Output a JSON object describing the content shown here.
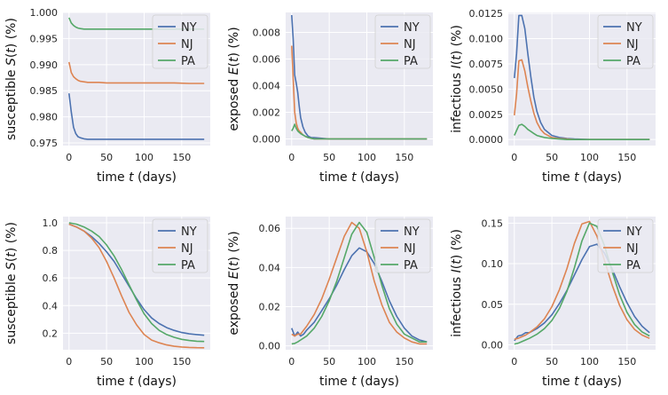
{
  "chart_data": [
    {
      "type": "line",
      "row": 0,
      "col": 0,
      "xlabel": "time t (days)",
      "ylabel": "susceptible S(t) (%)",
      "xlim": [
        -8,
        188
      ],
      "ylim": [
        0.9745,
        1.0
      ],
      "xticks": [
        0,
        50,
        100,
        150
      ],
      "yticks": [
        0.975,
        0.98,
        0.985,
        0.99,
        0.995,
        1.0
      ],
      "yticklabels": [
        "0.975",
        "0.980",
        "0.985",
        "0.990",
        "0.995",
        "1.000"
      ],
      "legend": [
        "NY",
        "NJ",
        "PA"
      ],
      "series": [
        {
          "name": "NY",
          "color": "#4c72b0",
          "x": [
            0,
            3,
            6,
            9,
            12,
            15,
            20,
            25,
            30,
            40,
            50,
            60,
            80,
            100,
            120,
            140,
            160,
            180
          ],
          "y": [
            0.9845,
            0.981,
            0.978,
            0.9768,
            0.9762,
            0.976,
            0.9758,
            0.9757,
            0.9757,
            0.9757,
            0.9757,
            0.9757,
            0.9757,
            0.9757,
            0.9757,
            0.9757,
            0.9757,
            0.9757
          ]
        },
        {
          "name": "NJ",
          "color": "#dd8452",
          "x": [
            0,
            3,
            6,
            9,
            12,
            15,
            20,
            25,
            30,
            40,
            50,
            60,
            80,
            100,
            120,
            140,
            160,
            180
          ],
          "y": [
            0.9905,
            0.9885,
            0.9877,
            0.9873,
            0.987,
            0.9868,
            0.9867,
            0.9866,
            0.9866,
            0.9866,
            0.9865,
            0.9865,
            0.9865,
            0.9865,
            0.9865,
            0.9865,
            0.9864,
            0.9864
          ]
        },
        {
          "name": "PA",
          "color": "#55a868",
          "x": [
            0,
            3,
            6,
            9,
            12,
            15,
            20,
            25,
            30,
            40,
            50,
            60,
            80,
            100,
            120,
            140,
            160,
            180
          ],
          "y": [
            0.999,
            0.998,
            0.9975,
            0.9972,
            0.997,
            0.9969,
            0.9968,
            0.9968,
            0.9968,
            0.9968,
            0.9968,
            0.9968,
            0.9968,
            0.9968,
            0.9968,
            0.9968,
            0.9968,
            0.9968
          ]
        }
      ]
    },
    {
      "type": "line",
      "row": 0,
      "col": 1,
      "xlabel": "time t (days)",
      "ylabel": "exposed E(t) (%)",
      "xlim": [
        -8,
        188
      ],
      "ylim": [
        -0.0005,
        0.0095
      ],
      "xticks": [
        0,
        50,
        100,
        150
      ],
      "yticks": [
        0,
        0.002,
        0.004,
        0.006,
        0.008
      ],
      "yticklabels": [
        "0.000",
        "0.002",
        "0.004",
        "0.006",
        "0.008"
      ],
      "legend": [
        "NY",
        "NJ",
        "PA"
      ],
      "series": [
        {
          "name": "NY",
          "color": "#4c72b0",
          "x": [
            0,
            2,
            4,
            6,
            8,
            10,
            12,
            15,
            18,
            22,
            26,
            30,
            40,
            50,
            60,
            80,
            100,
            120,
            140,
            160,
            180
          ],
          "y": [
            0.0093,
            0.0075,
            0.0048,
            0.0042,
            0.0035,
            0.0025,
            0.0016,
            0.0009,
            0.0005,
            0.0002,
            0.0001,
            0.0001,
            5e-05,
            0,
            0,
            0,
            0,
            0,
            0,
            0,
            0
          ]
        },
        {
          "name": "NJ",
          "color": "#dd8452",
          "x": [
            0,
            2,
            4,
            6,
            8,
            10,
            12,
            15,
            18,
            22,
            26,
            30,
            40,
            50,
            60,
            80,
            100,
            120,
            140,
            160,
            180
          ],
          "y": [
            0.007,
            0.0045,
            0.002,
            0.0012,
            0.0008,
            0.0006,
            0.0005,
            0.0003,
            0.0002,
            0.0001,
            5e-05,
            0,
            0,
            0,
            0,
            0,
            0,
            0,
            0,
            0,
            0
          ]
        },
        {
          "name": "PA",
          "color": "#55a868",
          "x": [
            0,
            2,
            4,
            6,
            8,
            10,
            12,
            15,
            18,
            22,
            26,
            30,
            40,
            50,
            60,
            80,
            100,
            120,
            140,
            160,
            180
          ],
          "y": [
            0.0006,
            0.0008,
            0.0011,
            0.0008,
            0.0006,
            0.0005,
            0.0004,
            0.0003,
            0.0002,
            0.0001,
            5e-05,
            0,
            0,
            0,
            0,
            0,
            0,
            0,
            0,
            0,
            0
          ]
        }
      ]
    },
    {
      "type": "line",
      "row": 0,
      "col": 2,
      "xlabel": "time t (days)",
      "ylabel": "infectious I(t) (%)",
      "xlim": [
        -8,
        188
      ],
      "ylim": [
        -0.0006,
        0.0126
      ],
      "xticks": [
        0,
        50,
        100,
        150
      ],
      "yticks": [
        0,
        0.0025,
        0.005,
        0.0075,
        0.01,
        0.0125
      ],
      "yticklabels": [
        "0.0000",
        "0.0025",
        "0.0050",
        "0.0075",
        "0.0100",
        "0.0125"
      ],
      "legend": [
        "NY",
        "NJ",
        "PA"
      ],
      "series": [
        {
          "name": "NY",
          "color": "#4c72b0",
          "x": [
            0,
            3,
            6,
            10,
            14,
            18,
            22,
            26,
            30,
            35,
            40,
            50,
            60,
            70,
            80,
            100,
            120,
            140,
            160,
            180
          ],
          "y": [
            0.0061,
            0.0085,
            0.0123,
            0.0123,
            0.011,
            0.0085,
            0.0062,
            0.0042,
            0.0028,
            0.0017,
            0.001,
            0.0004,
            0.0002,
            0.0001,
            5e-05,
            0,
            0,
            0,
            0,
            0
          ]
        },
        {
          "name": "NJ",
          "color": "#dd8452",
          "x": [
            0,
            3,
            6,
            10,
            14,
            18,
            22,
            26,
            30,
            35,
            40,
            50,
            60,
            70,
            80,
            100,
            120,
            140,
            160,
            180
          ],
          "y": [
            0.0024,
            0.0045,
            0.0078,
            0.0079,
            0.0068,
            0.0052,
            0.0038,
            0.0026,
            0.0017,
            0.001,
            0.0006,
            0.0002,
            0.0001,
            5e-05,
            0,
            0,
            0,
            0,
            0,
            0
          ]
        },
        {
          "name": "PA",
          "color": "#55a868",
          "x": [
            0,
            3,
            6,
            10,
            14,
            18,
            22,
            26,
            30,
            35,
            40,
            50,
            60,
            70,
            80,
            100,
            120,
            140,
            160,
            180
          ],
          "y": [
            0.0004,
            0.0009,
            0.0014,
            0.0015,
            0.0013,
            0.001,
            0.0008,
            0.0006,
            0.0004,
            0.0003,
            0.0002,
            0.0001,
            5e-05,
            0,
            0,
            0,
            0,
            0,
            0,
            0
          ]
        }
      ]
    },
    {
      "type": "line",
      "row": 1,
      "col": 0,
      "xlabel": "time t (days)",
      "ylabel": "susceptible S(t) (%)",
      "xlim": [
        -8,
        188
      ],
      "ylim": [
        0.08,
        1.045
      ],
      "xticks": [
        0,
        50,
        100,
        150
      ],
      "yticks": [
        0.2,
        0.4,
        0.6,
        0.8,
        1.0
      ],
      "yticklabels": [
        "0.2",
        "0.4",
        "0.6",
        "0.8",
        "1.0"
      ],
      "legend": [
        "NY",
        "NJ",
        "PA"
      ],
      "series": [
        {
          "name": "NY",
          "color": "#4c72b0",
          "x": [
            0,
            10,
            20,
            30,
            40,
            50,
            60,
            70,
            80,
            90,
            100,
            110,
            120,
            130,
            140,
            150,
            160,
            170,
            180
          ],
          "y": [
            0.99,
            0.97,
            0.94,
            0.9,
            0.85,
            0.79,
            0.72,
            0.63,
            0.54,
            0.45,
            0.37,
            0.31,
            0.27,
            0.24,
            0.22,
            0.205,
            0.195,
            0.19,
            0.185
          ]
        },
        {
          "name": "NJ",
          "color": "#dd8452",
          "x": [
            0,
            10,
            20,
            30,
            40,
            50,
            60,
            70,
            80,
            90,
            100,
            110,
            120,
            130,
            140,
            150,
            160,
            170,
            180
          ],
          "y": [
            0.99,
            0.97,
            0.94,
            0.89,
            0.82,
            0.72,
            0.6,
            0.47,
            0.35,
            0.26,
            0.19,
            0.15,
            0.13,
            0.115,
            0.105,
            0.1,
            0.097,
            0.095,
            0.094
          ]
        },
        {
          "name": "PA",
          "color": "#55a868",
          "x": [
            0,
            10,
            20,
            30,
            40,
            50,
            60,
            70,
            80,
            90,
            100,
            110,
            120,
            130,
            140,
            150,
            160,
            170,
            180
          ],
          "y": [
            1.0,
            0.99,
            0.97,
            0.94,
            0.9,
            0.84,
            0.76,
            0.66,
            0.55,
            0.44,
            0.34,
            0.27,
            0.22,
            0.19,
            0.17,
            0.155,
            0.147,
            0.142,
            0.14
          ]
        }
      ]
    },
    {
      "type": "line",
      "row": 1,
      "col": 1,
      "xlabel": "time t (days)",
      "ylabel": "exposed E(t) (%)",
      "xlim": [
        -8,
        188
      ],
      "ylim": [
        -0.002,
        0.066
      ],
      "xticks": [
        0,
        50,
        100,
        150
      ],
      "yticks": [
        0,
        0.02,
        0.04,
        0.06
      ],
      "yticklabels": [
        "0.00",
        "0.02",
        "0.04",
        "0.06"
      ],
      "legend": [
        "NY",
        "NJ",
        "PA"
      ],
      "series": [
        {
          "name": "NY",
          "color": "#4c72b0",
          "x": [
            0,
            4,
            8,
            12,
            16,
            20,
            30,
            40,
            50,
            60,
            70,
            80,
            90,
            100,
            110,
            120,
            130,
            140,
            150,
            160,
            170,
            180
          ],
          "y": [
            0.009,
            0.005,
            0.007,
            0.005,
            0.006,
            0.008,
            0.012,
            0.018,
            0.024,
            0.031,
            0.039,
            0.046,
            0.05,
            0.048,
            0.042,
            0.033,
            0.023,
            0.015,
            0.009,
            0.005,
            0.003,
            0.002
          ]
        },
        {
          "name": "NJ",
          "color": "#dd8452",
          "x": [
            0,
            4,
            8,
            12,
            16,
            20,
            30,
            40,
            50,
            60,
            70,
            80,
            90,
            100,
            110,
            120,
            130,
            140,
            150,
            160,
            170,
            180
          ],
          "y": [
            0.006,
            0.005,
            0.006,
            0.006,
            0.008,
            0.01,
            0.016,
            0.024,
            0.034,
            0.045,
            0.056,
            0.063,
            0.06,
            0.048,
            0.033,
            0.021,
            0.012,
            0.007,
            0.004,
            0.002,
            0.001,
            0.001
          ]
        },
        {
          "name": "PA",
          "color": "#55a868",
          "x": [
            0,
            4,
            8,
            12,
            16,
            20,
            30,
            40,
            50,
            60,
            70,
            80,
            90,
            100,
            110,
            120,
            130,
            140,
            150,
            160,
            170,
            180
          ],
          "y": [
            0.001,
            0.0012,
            0.002,
            0.003,
            0.004,
            0.005,
            0.009,
            0.015,
            0.023,
            0.033,
            0.045,
            0.057,
            0.063,
            0.058,
            0.045,
            0.031,
            0.019,
            0.011,
            0.006,
            0.004,
            0.002,
            0.002
          ]
        }
      ]
    },
    {
      "type": "line",
      "row": 1,
      "col": 2,
      "xlabel": "time t (days)",
      "ylabel": "infectious I(t) (%)",
      "xlim": [
        -8,
        188
      ],
      "ylim": [
        -0.006,
        0.158
      ],
      "xticks": [
        0,
        50,
        100,
        150
      ],
      "yticks": [
        0,
        0.05,
        0.1,
        0.15
      ],
      "yticklabels": [
        "0.00",
        "0.05",
        "0.10",
        "0.15"
      ],
      "legend": [
        "NY",
        "NJ",
        "PA"
      ],
      "series": [
        {
          "name": "NY",
          "color": "#4c72b0",
          "x": [
            0,
            5,
            10,
            15,
            20,
            30,
            40,
            50,
            60,
            70,
            80,
            90,
            100,
            110,
            120,
            130,
            140,
            150,
            160,
            170,
            180
          ],
          "y": [
            0.005,
            0.011,
            0.012,
            0.015,
            0.015,
            0.02,
            0.027,
            0.037,
            0.051,
            0.067,
            0.086,
            0.105,
            0.121,
            0.124,
            0.113,
            0.094,
            0.072,
            0.052,
            0.035,
            0.023,
            0.015
          ]
        },
        {
          "name": "NJ",
          "color": "#dd8452",
          "x": [
            0,
            5,
            10,
            15,
            20,
            30,
            40,
            50,
            60,
            70,
            80,
            90,
            100,
            110,
            120,
            130,
            140,
            150,
            160,
            170,
            180
          ],
          "y": [
            0.007,
            0.008,
            0.01,
            0.012,
            0.015,
            0.022,
            0.032,
            0.047,
            0.068,
            0.094,
            0.125,
            0.149,
            0.152,
            0.134,
            0.104,
            0.074,
            0.049,
            0.031,
            0.019,
            0.012,
            0.008
          ]
        },
        {
          "name": "PA",
          "color": "#55a868",
          "x": [
            0,
            5,
            10,
            15,
            20,
            30,
            40,
            50,
            60,
            70,
            80,
            90,
            100,
            110,
            120,
            130,
            140,
            150,
            160,
            170,
            180
          ],
          "y": [
            0.001,
            0.002,
            0.004,
            0.006,
            0.008,
            0.013,
            0.02,
            0.03,
            0.045,
            0.066,
            0.095,
            0.128,
            0.15,
            0.146,
            0.122,
            0.091,
            0.062,
            0.04,
            0.025,
            0.016,
            0.011
          ]
        }
      ]
    }
  ]
}
